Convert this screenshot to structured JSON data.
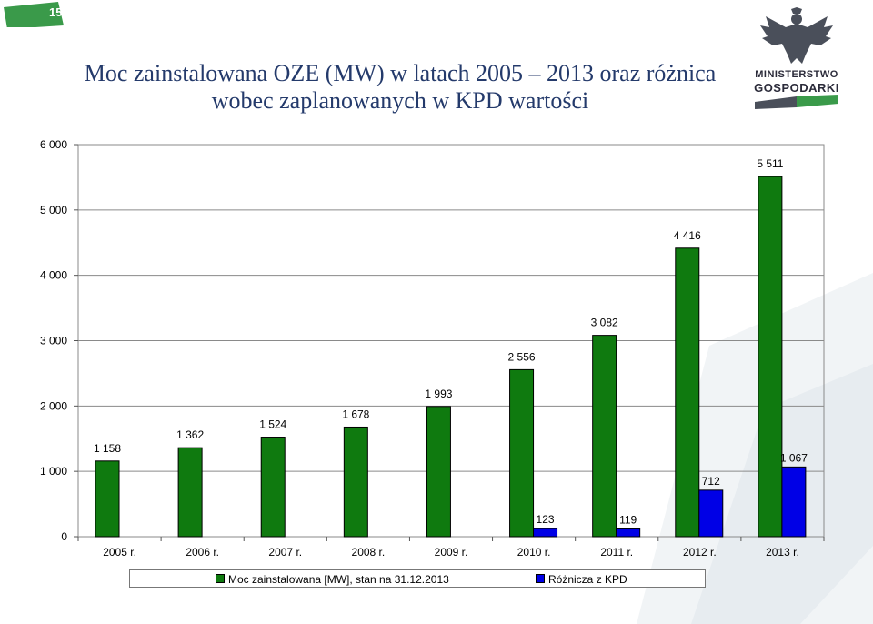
{
  "page_number": "15",
  "title_line1": "Moc zainstalowana OZE (MW) w latach 2005 – 2013 oraz różnica",
  "title_line2": "wobec zaplanowanych w KPD wartości",
  "logo": {
    "line1": "MINISTERSTWO",
    "line2": "GOSPODARKI",
    "icon": "eagle-emblem-icon"
  },
  "colors": {
    "series1": "#0f7a0f",
    "series2": "#0000e6",
    "brand_green": "#3a9a4a",
    "title": "#243a6b"
  },
  "chart_data": {
    "type": "bar",
    "categories": [
      "2005 r.",
      "2006 r.",
      "2007 r.",
      "2008 r.",
      "2009 r.",
      "2010 r.",
      "2011 r.",
      "2012 r.",
      "2013 r."
    ],
    "series": [
      {
        "name": "Moc zainstalowana [MW], stan na 31.12.2013",
        "values": [
          1158,
          1362,
          1524,
          1678,
          1993,
          2556,
          3082,
          4416,
          5511
        ],
        "labels": [
          "1 158",
          "1 362",
          "1 524",
          "1 678",
          "1 993",
          "2 556",
          "3 082",
          "4 416",
          "5 511"
        ]
      },
      {
        "name": "Różnicza z KPD",
        "values": [
          null,
          null,
          null,
          null,
          null,
          123,
          119,
          712,
          1067
        ],
        "labels": [
          null,
          null,
          null,
          null,
          null,
          "123",
          "119",
          "712",
          "1 067"
        ]
      }
    ],
    "ylim": [
      0,
      6000
    ],
    "yticks": [
      0,
      1000,
      2000,
      3000,
      4000,
      5000,
      6000
    ],
    "ytick_labels": [
      "0",
      "1 000",
      "2 000",
      "3 000",
      "4 000",
      "5 000",
      "6 000"
    ],
    "grid": true,
    "legend_position": "bottom"
  }
}
